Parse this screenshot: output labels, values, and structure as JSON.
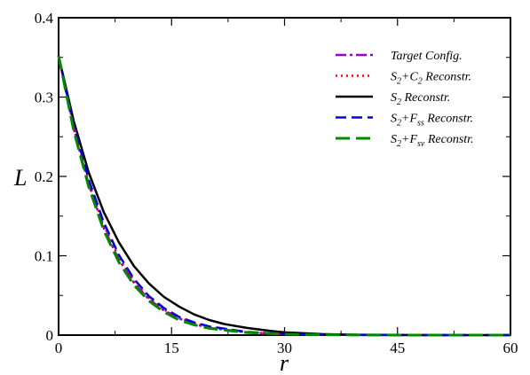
{
  "chart_data": {
    "type": "line",
    "xlabel": "r",
    "ylabel": "L",
    "xlim": [
      0,
      60
    ],
    "ylim": [
      0,
      0.4
    ],
    "xticks": [
      0,
      15,
      30,
      45,
      60
    ],
    "yticks": [
      0,
      0.1,
      0.2,
      0.3,
      0.4
    ],
    "xtick_labels": [
      "0",
      "15",
      "30",
      "45",
      "60"
    ],
    "ytick_labels": [
      "0",
      "0.1",
      "0.2",
      "0.3",
      "0.4"
    ],
    "grid": false,
    "legend_position": "top-right",
    "series": [
      {
        "name": "Target Config.",
        "legend": {
          "pre": "Target Config.",
          "sub1": "",
          "mid": "",
          "sub2": "",
          "post": ""
        },
        "color": "#9400d3",
        "dash": "12,4,3,4",
        "width": 2.5,
        "x": [
          0,
          2,
          4,
          6,
          8,
          10,
          12,
          14,
          16,
          18,
          20,
          25,
          30,
          35,
          40,
          50,
          60
        ],
        "y": [
          0.352,
          0.26,
          0.19,
          0.135,
          0.095,
          0.066,
          0.045,
          0.031,
          0.021,
          0.014,
          0.009,
          0.0035,
          0.0012,
          0.0004,
          0.0001,
          0.0,
          0.0
        ]
      },
      {
        "name": "S2+C2 Reconstr.",
        "legend": {
          "pre": "S",
          "sub1": "2",
          "mid": "+C",
          "sub2": "2",
          "post": " Reconstr."
        },
        "color": "#ff0000",
        "dash": "2,4",
        "width": 2.5,
        "x": [
          0,
          2,
          4,
          6,
          8,
          10,
          12,
          14,
          16,
          18,
          20,
          25,
          30,
          35,
          40,
          50,
          60
        ],
        "y": [
          0.352,
          0.262,
          0.192,
          0.138,
          0.098,
          0.068,
          0.047,
          0.032,
          0.022,
          0.015,
          0.01,
          0.0037,
          0.0013,
          0.0005,
          0.0002,
          0.0,
          0.0
        ]
      },
      {
        "name": "S2 Reconstr.",
        "legend": {
          "pre": "S",
          "sub1": "2",
          "mid": " Reconstr.",
          "sub2": "",
          "post": ""
        },
        "color": "#000000",
        "dash": "",
        "width": 2.5,
        "x": [
          0,
          2,
          4,
          6,
          8,
          10,
          12,
          14,
          16,
          18,
          20,
          22,
          25,
          28,
          30,
          35,
          40,
          50,
          60
        ],
        "y": [
          0.352,
          0.27,
          0.205,
          0.155,
          0.117,
          0.087,
          0.065,
          0.048,
          0.036,
          0.026,
          0.019,
          0.014,
          0.009,
          0.0055,
          0.0035,
          0.0012,
          0.0004,
          0.0,
          0.0
        ]
      },
      {
        "name": "S2+Fss Reconstr.",
        "legend": {
          "pre": "S",
          "sub1": "2",
          "mid": "+F",
          "sub2": "ss",
          "post": " Reconstr."
        },
        "color": "#0000dd",
        "dash": "12,6",
        "width": 2.5,
        "x": [
          0,
          2,
          4,
          6,
          8,
          10,
          12,
          14,
          16,
          18,
          20,
          25,
          30,
          35,
          40,
          50,
          60
        ],
        "y": [
          0.352,
          0.265,
          0.196,
          0.142,
          0.101,
          0.071,
          0.049,
          0.034,
          0.023,
          0.016,
          0.011,
          0.004,
          0.0015,
          0.0005,
          0.0002,
          0.0,
          0.0
        ]
      },
      {
        "name": "S2+Fsv Reconstr.",
        "legend": {
          "pre": "S",
          "sub1": "2",
          "mid": "+F",
          "sub2": "sv",
          "post": " Reconstr."
        },
        "color": "#008800",
        "dash": "16,7",
        "width": 3,
        "x": [
          0,
          2,
          4,
          6,
          8,
          10,
          12,
          14,
          16,
          18,
          20,
          25,
          30,
          35,
          40,
          50,
          60
        ],
        "y": [
          0.352,
          0.258,
          0.187,
          0.132,
          0.092,
          0.063,
          0.043,
          0.029,
          0.019,
          0.013,
          0.0085,
          0.0032,
          0.0011,
          0.0004,
          0.0001,
          0.0,
          0.0
        ]
      }
    ]
  }
}
